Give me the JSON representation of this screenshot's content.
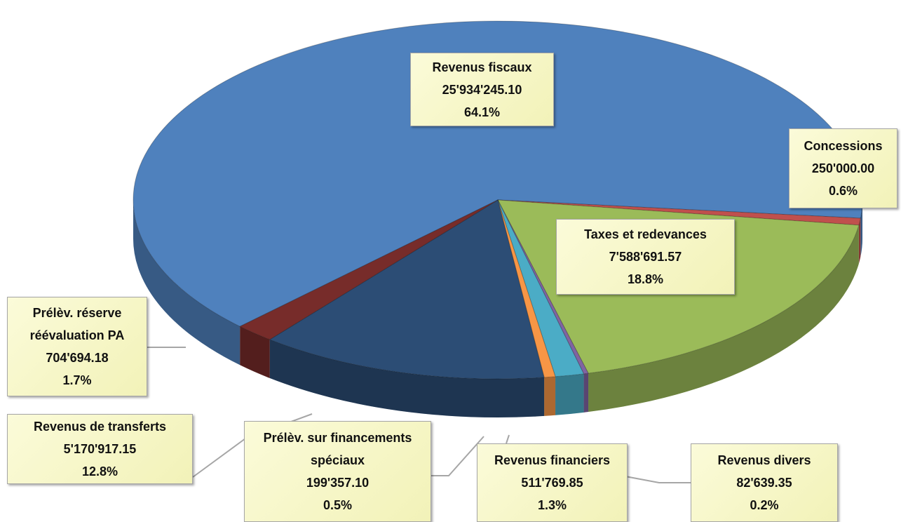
{
  "chart_data": {
    "type": "pie",
    "categories": [
      "Revenus fiscaux",
      "Concessions",
      "Taxes et redevances",
      "Revenus divers",
      "Revenus financiers",
      "Prélèv. sur financements spéciaux",
      "Revenus de transferts",
      "Prélèv. réserve réévaluation PA"
    ],
    "values": [
      25934245.1,
      250000.0,
      7588691.57,
      82639.35,
      511769.85,
      199357.1,
      5170917.15,
      704694.18
    ],
    "value_labels": [
      "25'934'245.10",
      "250'000.00",
      "7'588'691.57",
      "82'639.35",
      "511'769.85",
      "199'357.10",
      "5'170'917.15",
      "704'694.18"
    ],
    "percents": [
      64.1,
      0.6,
      18.8,
      0.2,
      1.3,
      0.5,
      12.8,
      1.7
    ],
    "percent_labels": [
      "64.1%",
      "0.6%",
      "18.8%",
      "0.2%",
      "1.3%",
      "0.5%",
      "12.8%",
      "1.7%"
    ],
    "colors": [
      "#4f81bd",
      "#c0504d",
      "#9bbb59",
      "#8064a2",
      "#4bacc6",
      "#f79646",
      "#2c4d75",
      "#772c2a"
    ]
  }
}
